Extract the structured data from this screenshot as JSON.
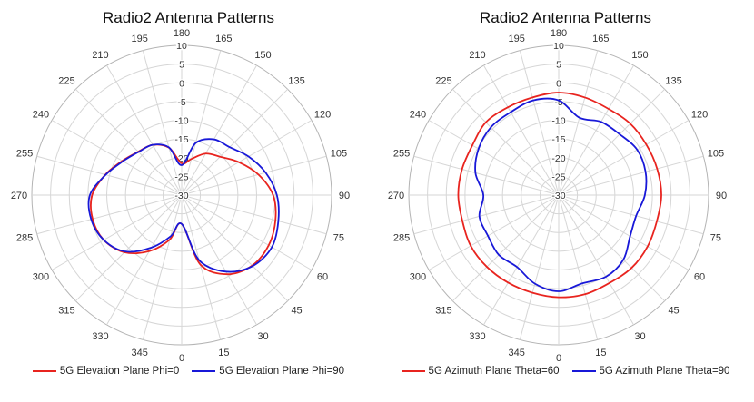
{
  "chart_data": [
    {
      "type": "polar-line",
      "title": "Radio2 Antenna Patterns",
      "angular_tick_labels": [
        "180",
        "165",
        "150",
        "135",
        "120",
        "105",
        "90",
        "75",
        "60",
        "45",
        "30",
        "15",
        "0",
        "345",
        "330",
        "315",
        "300",
        "285",
        "270",
        "255",
        "240",
        "225",
        "210",
        "195"
      ],
      "radial_tick_labels": [
        "10",
        "5",
        "0",
        "-5",
        "-10",
        "-15",
        "-20",
        "-25",
        "-30"
      ],
      "rlim": [
        -30,
        10
      ],
      "grid": true,
      "legend_position": "bottom",
      "series": [
        {
          "name": "5G Elevation Plane Phi=0",
          "color": "#e8241f",
          "angles": [
            0,
            15,
            30,
            45,
            60,
            75,
            90,
            105,
            120,
            135,
            150,
            165,
            180,
            195,
            210,
            225,
            240,
            255,
            270,
            285,
            300,
            315,
            330,
            345,
            360
          ],
          "values": [
            -22.3,
            -10.8,
            -5.6,
            -3.4,
            -3.2,
            -4.1,
            -5.6,
            -8.8,
            -12.4,
            -15.5,
            -17.2,
            -20.0,
            -21.5,
            -16.9,
            -14.5,
            -13.6,
            -11.7,
            -8.9,
            -6.1,
            -5.4,
            -6.0,
            -8.4,
            -12.7,
            -17.7,
            -22.3
          ]
        },
        {
          "name": "5G Elevation Plane Phi=90",
          "color": "#1818d8",
          "angles": [
            0,
            15,
            30,
            45,
            60,
            75,
            90,
            105,
            120,
            135,
            150,
            165,
            180,
            195,
            210,
            225,
            240,
            255,
            270,
            285,
            300,
            315,
            330,
            345,
            360
          ],
          "values": [
            -22.3,
            -12.0,
            -6.4,
            -3.2,
            -2.2,
            -3.3,
            -4.6,
            -6.8,
            -9.4,
            -11.9,
            -12.8,
            -15.6,
            -22.0,
            -16.8,
            -14.5,
            -13.7,
            -11.9,
            -9.0,
            -5.5,
            -5.0,
            -6.0,
            -8.7,
            -13.8,
            -18.6,
            -22.3
          ]
        }
      ]
    },
    {
      "type": "polar-line",
      "title": "Radio2 Antenna Patterns",
      "angular_tick_labels": [
        "180",
        "165",
        "150",
        "135",
        "120",
        "105",
        "90",
        "75",
        "60",
        "45",
        "30",
        "15",
        "0",
        "345",
        "330",
        "315",
        "300",
        "285",
        "270",
        "255",
        "240",
        "225",
        "210",
        "195"
      ],
      "radial_tick_labels": [
        "10",
        "5",
        "0",
        "-5",
        "-10",
        "-15",
        "-20",
        "-25",
        "-30"
      ],
      "rlim": [
        -30,
        10
      ],
      "grid": true,
      "legend_position": "bottom",
      "series": [
        {
          "name": "5G Azimuth Plane Theta=60",
          "color": "#e8241f",
          "angles": [
            0,
            15,
            30,
            45,
            60,
            75,
            90,
            105,
            120,
            135,
            150,
            165,
            180,
            195,
            210,
            225,
            240,
            255,
            270,
            285,
            300,
            315,
            330,
            345,
            360
          ],
          "values": [
            -2.7,
            -2.6,
            -2.9,
            -2.5,
            -2.6,
            -2.9,
            -2.6,
            -2.8,
            -3.0,
            -3.0,
            -3.4,
            -3.0,
            -2.6,
            -3.0,
            -2.9,
            -2.5,
            -3.4,
            -3.3,
            -3.2,
            -3.4,
            -2.9,
            -2.9,
            -3.0,
            -3.0,
            -2.7
          ]
        },
        {
          "name": "5G Azimuth Plane Theta=90",
          "color": "#1818d8",
          "angles": [
            0,
            15,
            30,
            45,
            60,
            75,
            90,
            105,
            120,
            135,
            150,
            165,
            180,
            195,
            210,
            225,
            240,
            255,
            270,
            285,
            300,
            315,
            330,
            345,
            360
          ],
          "values": [
            -4.3,
            -5.6,
            -4.8,
            -5.6,
            -8.0,
            -8.6,
            -7.0,
            -6.0,
            -5.8,
            -7.0,
            -7.4,
            -8.6,
            -4.7,
            -3.8,
            -4.4,
            -4.4,
            -5.3,
            -7.0,
            -9.9,
            -8.1,
            -8.2,
            -7.4,
            -7.8,
            -5.5,
            -4.3
          ]
        }
      ]
    }
  ]
}
